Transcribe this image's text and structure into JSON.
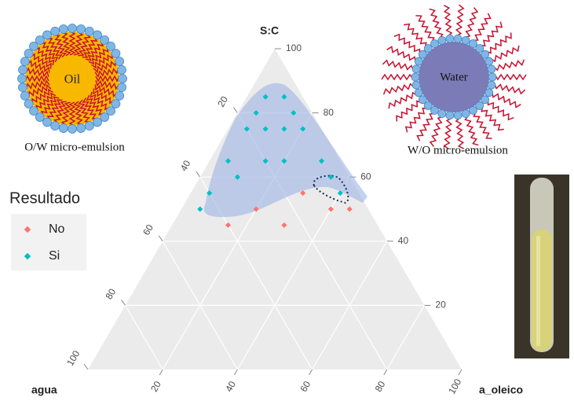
{
  "chart_data": {
    "type": "ternary",
    "top_label": "S:C",
    "left_label": "agua",
    "right_label": "a_oleico",
    "legend_title": "Resultado",
    "annotations": [
      "Oil",
      "O/W micro-emulsion",
      "Water",
      "W/O micro-emulsion"
    ],
    "ticks": [
      20,
      40,
      60,
      80,
      100
    ],
    "grid": true,
    "series": [
      {
        "name": "No",
        "color": "#f8766d",
        "sc": [
          55,
          50,
          50,
          50,
          45,
          45
        ],
        "agua": [
          15,
          30,
          10,
          5,
          40,
          25
        ],
        "a_oleico": [
          30,
          20,
          40,
          45,
          15,
          30
        ]
      },
      {
        "name": "Si",
        "color": "#00bfc4",
        "sc": [
          85,
          85,
          80,
          80,
          75,
          75,
          75,
          75,
          65,
          65,
          65,
          65,
          60,
          60,
          55,
          55,
          50
        ],
        "agua": [
          10,
          5,
          15,
          5,
          20,
          15,
          10,
          5,
          30,
          20,
          15,
          5,
          30,
          5,
          40,
          5,
          45
        ],
        "a_oleico": [
          5,
          10,
          5,
          15,
          5,
          10,
          15,
          20,
          5,
          15,
          20,
          30,
          10,
          35,
          5,
          40,
          5
        ]
      }
    ]
  }
}
